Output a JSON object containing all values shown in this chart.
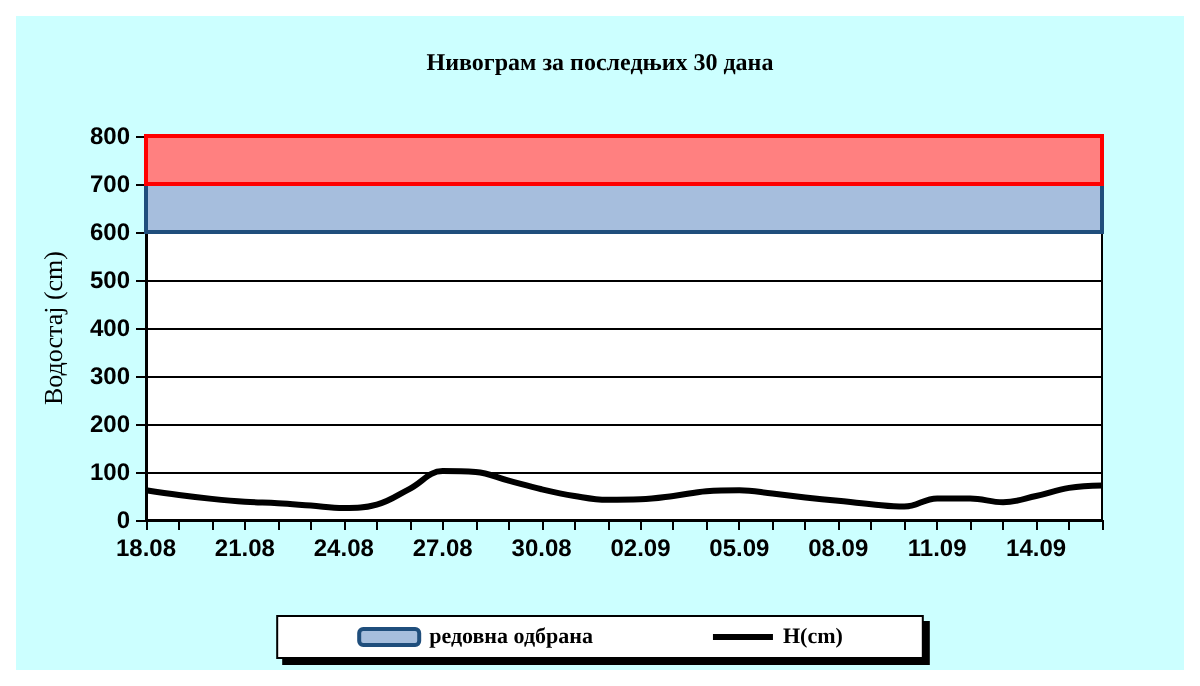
{
  "chart_data": {
    "type": "line",
    "title": "Нивограм за последњих 30 дана",
    "ylabel": "Водостај (cm)",
    "categories": [
      "18.08",
      null,
      null,
      "21.08",
      null,
      null,
      "24.08",
      null,
      null,
      "27.08",
      null,
      null,
      "30.08",
      null,
      null,
      "02.09",
      null,
      null,
      "05.09",
      null,
      null,
      "08.09",
      null,
      null,
      "11.09",
      null,
      null,
      "14.09",
      null,
      null
    ],
    "series": [
      {
        "name": "H(cm)",
        "color": "#000000",
        "values": [
          62,
          52,
          44,
          38,
          35,
          30,
          25,
          32,
          65,
          102,
          100,
          82,
          64,
          50,
          42,
          43,
          50,
          60,
          62,
          55,
          47,
          40,
          33,
          28,
          45,
          45,
          37,
          50,
          67,
          72
        ]
      }
    ],
    "ylim": [
      0,
      800
    ],
    "yticks": [
      0,
      100,
      200,
      300,
      400,
      500,
      600,
      700,
      800
    ],
    "bands": [
      {
        "axis": "y",
        "from": 600,
        "to": 700,
        "label": "редовна одбрана",
        "color": "#a6bedd"
      },
      {
        "axis": "y",
        "from": 700,
        "to": 800,
        "color": "#ff8080"
      }
    ],
    "grid": "y",
    "legend": "bottom",
    "marker": "none",
    "line_style": "solid"
  }
}
